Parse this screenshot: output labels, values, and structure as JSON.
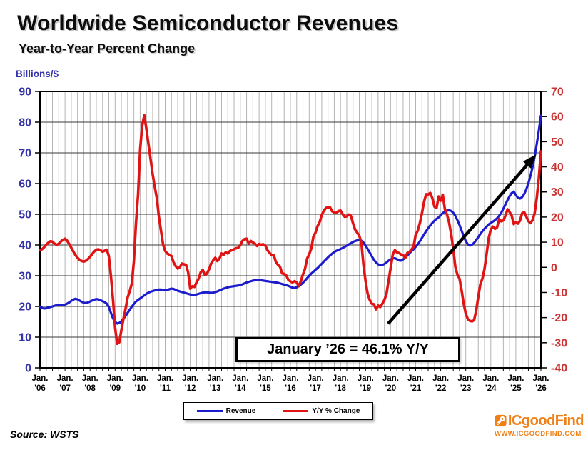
{
  "header": {
    "title": "Worldwide Semiconductor Revenues",
    "subtitle": "Year-to-Year Percent Change"
  },
  "chart_data": {
    "type": "line",
    "title": "Worldwide Semiconductor Revenues",
    "subtitle": "Year-to-Year Percent Change",
    "grid": "on",
    "legend_position": "bottom-center",
    "left_axis": {
      "label": "Billions/$",
      "min": 0,
      "max": 90,
      "tick_step": 10,
      "ticks": [
        0,
        10,
        20,
        30,
        40,
        50,
        60,
        70,
        80,
        90
      ],
      "label_color": "#3533a8"
    },
    "right_axis": {
      "label": "Y/Y % Change",
      "min": -40,
      "max": 70,
      "tick_step": 10,
      "ticks": [
        -40,
        -30,
        -20,
        -10,
        0,
        10,
        20,
        30,
        40,
        50,
        60,
        70
      ],
      "label_color": "#cc3333"
    },
    "x_axis": {
      "start_year": 2006,
      "end_year": 2026,
      "month_label": "Jan.",
      "year_labels": [
        "'06",
        "'07",
        "'08",
        "'09",
        "'10",
        "'11",
        "'12",
        "'13",
        "'14",
        "'15",
        "'16",
        "'17",
        "'18",
        "'19",
        "'20",
        "'21",
        "'22",
        "'23",
        "'24",
        "'25",
        "'26"
      ],
      "gridlines_per_year": 4
    },
    "series": [
      {
        "name": "Revenue",
        "axis": "left",
        "color": "#1c1ccd",
        "x_start": 2006.0,
        "x_step_months": 1,
        "values": [
          19.8,
          19.5,
          19.3,
          19.4,
          19.6,
          19.8,
          20.0,
          20.2,
          20.4,
          20.6,
          20.5,
          20.4,
          20.6,
          20.9,
          21.3,
          21.8,
          22.2,
          22.5,
          22.3,
          21.9,
          21.5,
          21.2,
          21.1,
          21.3,
          21.6,
          21.9,
          22.2,
          22.4,
          22.3,
          22.0,
          21.7,
          21.4,
          20.9,
          19.8,
          17.9,
          16.1,
          15.0,
          14.4,
          14.6,
          15.2,
          16.0,
          16.9,
          17.9,
          18.9,
          19.9,
          20.8,
          21.6,
          22.1,
          22.6,
          23.1,
          23.6,
          24.1,
          24.5,
          24.8,
          25.0,
          25.2,
          25.4,
          25.5,
          25.5,
          25.4,
          25.3,
          25.4,
          25.6,
          25.8,
          25.7,
          25.4,
          25.1,
          24.9,
          24.7,
          24.5,
          24.3,
          24.1,
          23.9,
          23.8,
          23.8,
          23.9,
          24.1,
          24.3,
          24.5,
          24.6,
          24.6,
          24.5,
          24.4,
          24.5,
          24.7,
          24.9,
          25.2,
          25.5,
          25.8,
          26.0,
          26.2,
          26.4,
          26.5,
          26.6,
          26.7,
          26.8,
          27.0,
          27.2,
          27.5,
          27.8,
          28.0,
          28.2,
          28.4,
          28.5,
          28.6,
          28.6,
          28.5,
          28.4,
          28.3,
          28.2,
          28.1,
          28.0,
          27.9,
          27.8,
          27.7,
          27.5,
          27.3,
          27.1,
          26.9,
          26.7,
          26.4,
          26.1,
          26.0,
          26.2,
          26.6,
          27.1,
          27.7,
          28.4,
          29.2,
          30.0,
          30.7,
          31.3,
          31.9,
          32.5,
          33.2,
          33.9,
          34.6,
          35.3,
          36.0,
          36.6,
          37.2,
          37.7,
          38.1,
          38.4,
          38.7,
          39.0,
          39.4,
          39.8,
          40.2,
          40.6,
          41.0,
          41.3,
          41.5,
          41.6,
          41.4,
          40.8,
          39.8,
          38.7,
          37.5,
          36.3,
          35.2,
          34.3,
          33.7,
          33.4,
          33.5,
          33.8,
          34.3,
          34.9,
          35.3,
          35.6,
          35.7,
          35.4,
          35.0,
          34.9,
          35.3,
          35.9,
          36.6,
          37.3,
          38.0,
          38.6,
          39.4,
          40.2,
          41.2,
          42.3,
          43.4,
          44.5,
          45.5,
          46.4,
          47.2,
          47.9,
          48.5,
          49.0,
          49.7,
          50.4,
          50.9,
          51.2,
          51.3,
          51.1,
          50.5,
          49.5,
          48.1,
          46.5,
          44.7,
          42.9,
          41.3,
          40.2,
          39.8,
          40.1,
          40.7,
          41.6,
          42.6,
          43.6,
          44.5,
          45.3,
          46.0,
          46.7,
          47.2,
          47.6,
          48.1,
          48.7,
          49.5,
          50.5,
          51.8,
          53.2,
          54.6,
          55.9,
          56.9,
          57.4,
          56.3,
          55.4,
          55.1,
          55.6,
          56.6,
          58.1,
          60.1,
          62.5,
          65.3,
          68.8,
          72.8,
          77.3,
          82.1
        ]
      },
      {
        "name": "Y/Y % Change",
        "axis": "right",
        "color": "#e01414",
        "x_start": 2006.0,
        "x_step_months": 1,
        "values": [
          6.8,
          7.2,
          8.0,
          9.0,
          9.8,
          10.4,
          10.2,
          9.4,
          8.9,
          9.4,
          10.3,
          10.9,
          11.4,
          10.6,
          9.3,
          7.8,
          6.3,
          4.9,
          3.8,
          3.0,
          2.5,
          2.3,
          2.6,
          3.3,
          4.2,
          5.3,
          6.3,
          7.0,
          7.2,
          6.8,
          6.2,
          6.6,
          7.0,
          4.5,
          -3.5,
          -13.0,
          -24.0,
          -30.4,
          -29.8,
          -25.0,
          -20.5,
          -16.5,
          -12.0,
          -9.5,
          -6.5,
          2.5,
          17.5,
          29.0,
          47.0,
          56.5,
          60.5,
          55.0,
          49.0,
          43.0,
          37.0,
          32.0,
          27.5,
          20.0,
          14.5,
          9.0,
          6.5,
          5.5,
          5.0,
          4.5,
          2.0,
          0.5,
          -0.5,
          0.0,
          1.5,
          1.2,
          1.0,
          -2.0,
          -8.5,
          -7.5,
          -7.8,
          -6.0,
          -4.5,
          -2.0,
          -1.0,
          -3.0,
          -2.5,
          -0.8,
          1.5,
          2.8,
          3.8,
          2.5,
          3.5,
          5.5,
          5.0,
          6.0,
          5.5,
          6.5,
          6.8,
          7.2,
          7.6,
          7.8,
          8.8,
          10.5,
          11.2,
          11.4,
          9.5,
          10.5,
          9.9,
          9.4,
          8.5,
          9.3,
          9.0,
          9.2,
          8.6,
          6.8,
          5.8,
          4.8,
          4.9,
          2.2,
          1.0,
          0.3,
          -2.4,
          -2.6,
          -3.2,
          -5.0,
          -5.6,
          -6.0,
          -5.5,
          -6.0,
          -7.5,
          -5.5,
          -2.8,
          -0.6,
          3.5,
          5.2,
          7.5,
          12.2,
          13.8,
          16.4,
          18.0,
          20.8,
          22.5,
          23.6,
          24.0,
          23.8,
          22.3,
          21.8,
          21.6,
          22.4,
          22.6,
          21.2,
          20.1,
          20.3,
          21.0,
          20.4,
          17.5,
          15.0,
          13.8,
          12.6,
          9.7,
          0.8,
          -5.5,
          -10.5,
          -13.0,
          -14.5,
          -14.7,
          -16.7,
          -15.2,
          -15.8,
          -14.5,
          -13.0,
          -10.7,
          -5.4,
          -0.3,
          4.9,
          6.8,
          6.0,
          5.7,
          5.1,
          4.9,
          3.7,
          5.7,
          6.1,
          7.1,
          8.3,
          13.0,
          14.6,
          17.6,
          21.5,
          26.0,
          29.1,
          29.0,
          29.6,
          27.5,
          24.1,
          23.6,
          28.2,
          26.5,
          28.9,
          23.1,
          21.0,
          17.9,
          13.2,
          7.4,
          0.2,
          -2.9,
          -4.5,
          -9.1,
          -14.5,
          -18.4,
          -20.6,
          -21.3,
          -21.5,
          -21.0,
          -17.2,
          -11.7,
          -6.7,
          -4.4,
          -0.6,
          5.4,
          11.7,
          15.1,
          16.2,
          15.3,
          15.9,
          19.2,
          18.3,
          18.7,
          20.5,
          23.1,
          22.0,
          20.6,
          17.2,
          18.0,
          17.4,
          18.6,
          21.5,
          22.0,
          20.2,
          18.4,
          17.6,
          18.8,
          21.5,
          27.5,
          35.5,
          46.1
        ]
      }
    ],
    "annotation": {
      "text": "January ’26 = 46.1% Y/Y",
      "arrow": {
        "axis": "right",
        "from": {
          "year": 2019.9,
          "value": -22.4
        },
        "to": {
          "year": 2025.82,
          "value": 45.0
        },
        "color": "#000000"
      }
    }
  },
  "legend": {
    "items": [
      {
        "label": "Revenue",
        "color": "#1c1ccd"
      },
      {
        "label": "Y/Y % Change",
        "color": "#e01414"
      }
    ]
  },
  "source": "Source: WSTS",
  "brand": {
    "name": "ICgoodFind",
    "url": "WWW.ICGOODFIND.COM",
    "color": "#f07f16"
  }
}
